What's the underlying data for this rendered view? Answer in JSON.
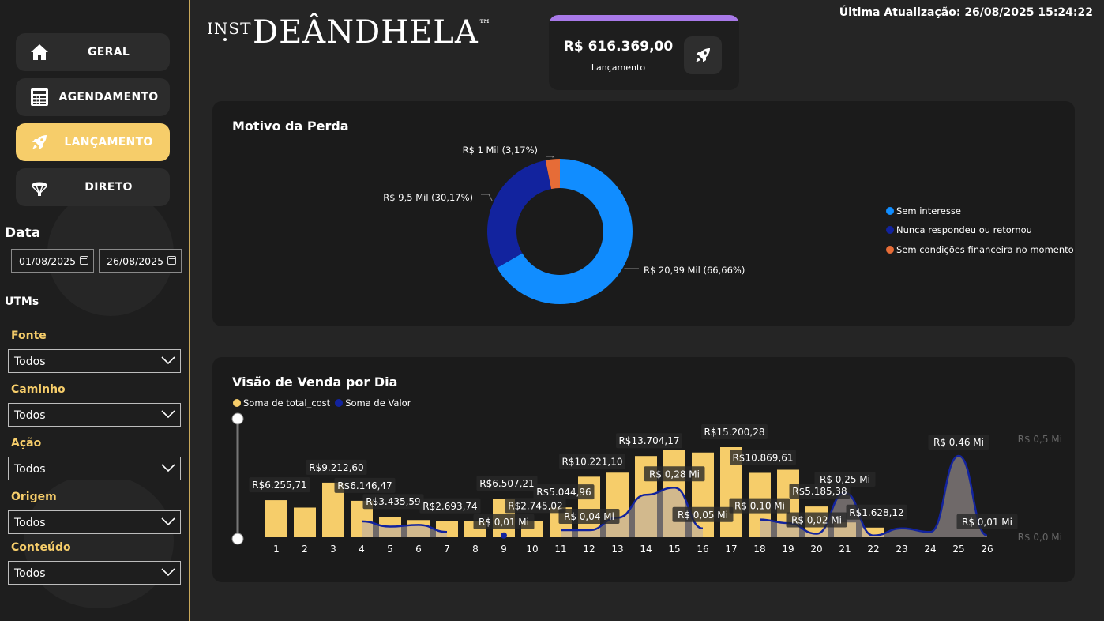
{
  "nav": [
    {
      "label": "GERAL",
      "icon": "home-icon",
      "active": false
    },
    {
      "label": "AGENDAMENTO",
      "icon": "calculator-icon",
      "active": false
    },
    {
      "label": "LANÇAMENTO",
      "icon": "rocket-icon",
      "active": true
    },
    {
      "label": "DIRETO",
      "icon": "parachute-icon",
      "active": false
    }
  ],
  "date_filter": {
    "title": "Data",
    "start": "01/08/2025",
    "end": "26/08/2025"
  },
  "utms": {
    "title": "UTMs",
    "filters": [
      {
        "label": "Fonte",
        "value": "Todos"
      },
      {
        "label": "Caminho",
        "value": "Todos"
      },
      {
        "label": "Ação",
        "value": "Todos"
      },
      {
        "label": "Origem",
        "value": "Todos"
      },
      {
        "label": "Conteúdo",
        "value": "Todos"
      }
    ]
  },
  "logo": {
    "prefix": "INST",
    "name": "DEÂNDHELA",
    "tm": "™"
  },
  "kpi": {
    "value": "R$ 616.369,00",
    "label": "Lançamento",
    "icon": "rocket-icon",
    "accent": "#a879e8"
  },
  "last_update": "Última Atualização: 26/08/2025 15:24:22",
  "pie_panel": {
    "title": "Motivo da Perda"
  },
  "bar_panel": {
    "title": "Visão de Venda por Dia"
  },
  "colors": {
    "gold": "#f6cd6a",
    "blue_light": "#118dff",
    "blue_dark": "#12239e",
    "orange": "#e66c37",
    "sidebar_border": "#c9a85a"
  },
  "chart_data": [
    {
      "type": "pie",
      "title": "Motivo da Perda",
      "legend_position": "right",
      "slices": [
        {
          "name": "Sem interesse",
          "value": 20.99,
          "label": "R$ 20,99 Mil (66,66%)",
          "color": "#118dff"
        },
        {
          "name": "Nunca respondeu ou retornou",
          "value": 9.5,
          "label": "R$ 9,5 Mil (30,17%)",
          "color": "#12239e"
        },
        {
          "name": "Sem condições financeira no momento",
          "value": 1.0,
          "label": "R$ 1 Mil (3,17%)",
          "color": "#e66c37"
        }
      ]
    },
    {
      "type": "bar",
      "title": "Visão de Venda por Dia",
      "legend_position": "top-left",
      "categories": [
        "1",
        "2",
        "3",
        "4",
        "5",
        "6",
        "7",
        "8",
        "9",
        "10",
        "11",
        "12",
        "13",
        "14",
        "15",
        "16",
        "17",
        "18",
        "19",
        "20",
        "21",
        "22",
        "23",
        "24",
        "25",
        "26"
      ],
      "series": [
        {
          "name": "Soma de total_cost",
          "type": "bar",
          "color": "#f6cd6a",
          "values": [
            6255.71,
            5000,
            9212.6,
            6146.47,
            3435.59,
            2900,
            2693.74,
            2800,
            6507.21,
            2745.02,
            5044.96,
            10221.1,
            10900,
            13704.17,
            14700,
            14300,
            15200.28,
            10869.61,
            11400,
            5185.38,
            2500,
            1628.12,
            null,
            null,
            null,
            null
          ],
          "labels": {
            "1": "R$6.255,71",
            "3": "R$9.212,60",
            "4": "R$6.146,47",
            "5": "R$3.435,59",
            "7": "R$2.693,74",
            "9": "R$6.507,21",
            "10": "R$2.745,02",
            "11": "R$5.044,96",
            "12": "R$10.221,10",
            "14": "R$13.704,17",
            "17": "R$15.200,28",
            "18": "R$10.869,61",
            "20": "R$5.185,38",
            "22": "R$1.628,12"
          }
        },
        {
          "name": "Soma de Valor",
          "type": "area",
          "color": "#12239e",
          "unit": "Mi",
          "values": [
            null,
            null,
            null,
            0.09,
            0.06,
            0.07,
            0.03,
            null,
            0.01,
            null,
            0.04,
            0.04,
            0.11,
            0.24,
            0.28,
            0.05,
            null,
            0.1,
            0.08,
            0.02,
            0.25,
            0.01,
            0.05,
            0.03,
            0.46,
            0.01
          ],
          "labels": {
            "9": "R$ 0,01 Mi",
            "12": "R$ 0,04 Mi",
            "15": "R$ 0,28 Mi",
            "16": "R$ 0,05 Mi",
            "18": "R$ 0,10 Mi",
            "20": "R$ 0,02 Mi",
            "21": "R$ 0,25 Mi",
            "25": "R$ 0,46 Mi",
            "26": "R$ 0,01 Mi"
          }
        }
      ],
      "y_left_max": 16000,
      "y_right_ticks": [
        "R$ 0,0 Mi",
        "R$ 0,5 Mi"
      ],
      "y_right_range": [
        0,
        0.5
      ]
    }
  ]
}
